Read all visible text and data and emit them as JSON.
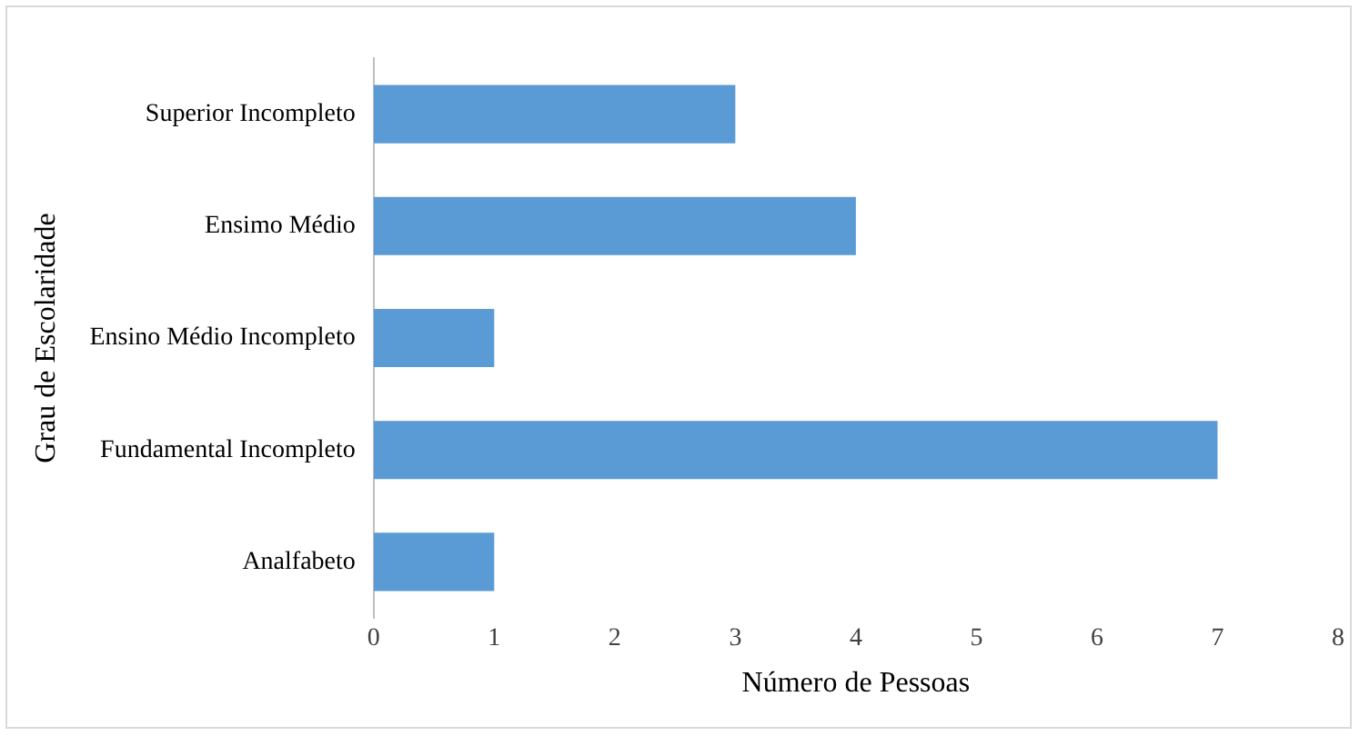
{
  "chart_data": {
    "type": "bar",
    "orientation": "horizontal",
    "xlabel": "Número de Pessoas",
    "ylabel": "Grau de Escolaridade",
    "categories": [
      "Superior Incompleto",
      "Ensimo Médio",
      "Ensino Médio Incompleto",
      "Fundamental Incompleto",
      "Analfabeto"
    ],
    "values": [
      3,
      4,
      1,
      7,
      1
    ],
    "color": "#5b9bd5",
    "xlim": [
      0,
      8
    ],
    "xticks": [
      0,
      1,
      2,
      3,
      4,
      5,
      6,
      7,
      8
    ],
    "grid": false,
    "legend": false
  }
}
